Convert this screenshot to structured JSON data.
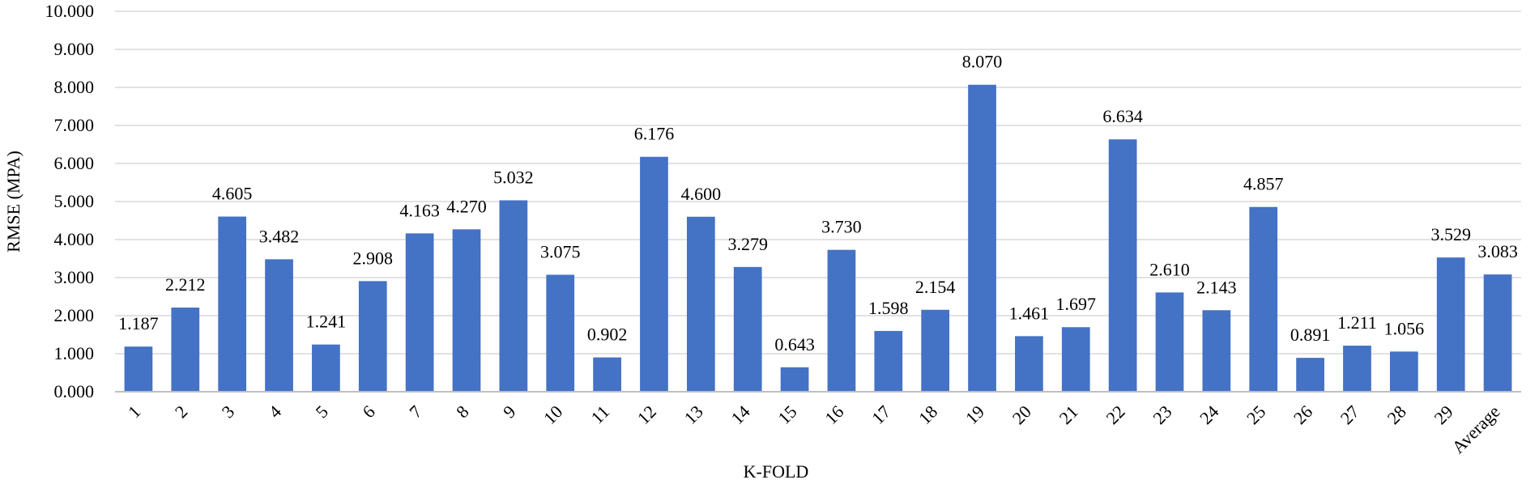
{
  "chart_data": {
    "type": "bar",
    "title": "",
    "xlabel": "K-FOLD",
    "ylabel": "RMSE (MPA)",
    "ylim": [
      0,
      10
    ],
    "y_tick_step": 1,
    "y_tick_decimals": 3,
    "grid": true,
    "bar_color": "#4472C4",
    "categories": [
      "1",
      "2",
      "3",
      "4",
      "5",
      "6",
      "7",
      "8",
      "9",
      "10",
      "11",
      "12",
      "13",
      "14",
      "15",
      "16",
      "17",
      "18",
      "19",
      "20",
      "21",
      "22",
      "23",
      "24",
      "25",
      "26",
      "27",
      "28",
      "29",
      "Average"
    ],
    "values": [
      1.187,
      2.212,
      4.605,
      3.482,
      1.241,
      2.908,
      4.163,
      4.27,
      5.032,
      3.075,
      0.902,
      6.176,
      4.6,
      3.279,
      0.643,
      3.73,
      1.598,
      2.154,
      8.07,
      1.461,
      1.697,
      6.634,
      2.61,
      2.143,
      4.857,
      0.891,
      1.211,
      1.056,
      3.529,
      3.083
    ],
    "value_labels": [
      "1.187",
      "2.212",
      "4.605",
      "3.482",
      "1.241",
      "2.908",
      "4.163",
      "4.270",
      "5.032",
      "3.075",
      "0.902",
      "6.176",
      "4.600",
      "3.279",
      "0.643",
      "3.730",
      "1.598",
      "2.154",
      "8.070",
      "1.461",
      "1.697",
      "6.634",
      "2.610",
      "2.143",
      "4.857",
      "0.891",
      "1.211",
      "1.056",
      "3.529",
      "3.083"
    ]
  }
}
